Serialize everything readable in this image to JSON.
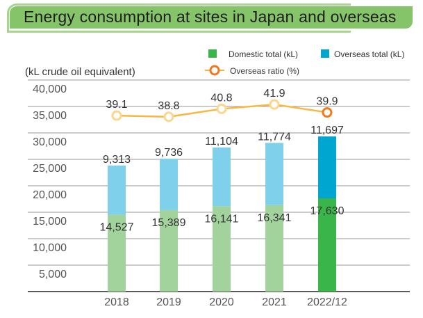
{
  "chart_data": {
    "type": "bar",
    "title": "Energy consumption at sites in Japan and overseas",
    "ylabel": "(kL crude oil equivalent)",
    "ylim": [
      0,
      40000
    ],
    "yticks": [
      "5,000",
      "10,000",
      "15,000",
      "20,000",
      "25,000",
      "30,000",
      "35,000",
      "40,000"
    ],
    "ytick_values": [
      5000,
      10000,
      15000,
      20000,
      25000,
      30000,
      35000,
      40000
    ],
    "grid": true,
    "legend_placement": "top-right",
    "categories": [
      "2018",
      "2019",
      "2020",
      "2021",
      "2022/12"
    ],
    "series": [
      {
        "name": "Domestic total (kL)",
        "type": "stacked-bar",
        "values": [
          14527,
          15389,
          16141,
          16341,
          17630
        ],
        "labels": [
          "14,527",
          "15,389",
          "16,141",
          "16,341",
          "17,630"
        ],
        "colors": [
          "#a3d39c",
          "#a3d39c",
          "#a3d39c",
          "#a3d39c",
          "#39b54a"
        ]
      },
      {
        "name": "Overseas total (kL)",
        "type": "stacked-bar",
        "values": [
          9313,
          9736,
          11104,
          11774,
          11697
        ],
        "labels": [
          "9,313",
          "9,736",
          "11,104",
          "11,774",
          "11,697"
        ],
        "colors": [
          "#7fd0ea",
          "#7fd0ea",
          "#7fd0ea",
          "#7fd0ea",
          "#00a6cf"
        ]
      },
      {
        "name": "Overseas ratio (%)",
        "type": "line",
        "values": [
          39.1,
          38.8,
          40.8,
          41.9,
          39.9
        ],
        "labels": [
          "39.1",
          "38.8",
          "40.8",
          "41.9",
          "39.9"
        ],
        "color": "#f5b841",
        "highlight_color": "#f07b1e"
      }
    ],
    "legend_colors": {
      "domestic": "#39b54a",
      "overseas": "#00a6cf",
      "ratio": "#f07b1e"
    }
  }
}
